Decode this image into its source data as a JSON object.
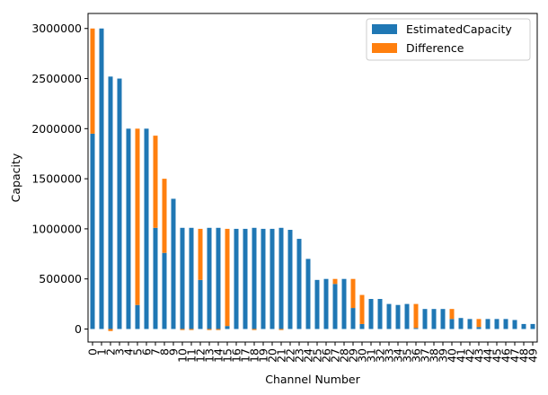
{
  "chart_data": {
    "type": "bar",
    "stacked": true,
    "xlabel": "Channel Number",
    "ylabel": "Capacity",
    "ylim": [
      -130000,
      3150000
    ],
    "yticks": [
      0,
      500000,
      1000000,
      1500000,
      2000000,
      2500000,
      3000000
    ],
    "ytick_labels": [
      "0",
      "500000",
      "1000000",
      "1500000",
      "2000000",
      "2500000",
      "3000000"
    ],
    "legend_position": "top-right",
    "categories": [
      "0",
      "1",
      "2",
      "3",
      "4",
      "5",
      "6",
      "7",
      "8",
      "9",
      "10",
      "11",
      "12",
      "13",
      "14",
      "15",
      "16",
      "17",
      "18",
      "19",
      "20",
      "21",
      "22",
      "23",
      "24",
      "25",
      "26",
      "27",
      "28",
      "29",
      "30",
      "31",
      "32",
      "33",
      "34",
      "35",
      "36",
      "37",
      "38",
      "39",
      "40",
      "41",
      "42",
      "43",
      "44",
      "45",
      "46",
      "47",
      "48",
      "49"
    ],
    "series": [
      {
        "name": "EstimatedCapacity",
        "color": "#1f77b4",
        "values": [
          1950000,
          3000000,
          2520000,
          2500000,
          2000000,
          240000,
          2000000,
          1010000,
          760000,
          1300000,
          1010000,
          1010000,
          490000,
          1010000,
          1010000,
          30000,
          1000000,
          1000000,
          1010000,
          1000000,
          1000000,
          1010000,
          990000,
          900000,
          700000,
          490000,
          500000,
          450000,
          500000,
          210000,
          50000,
          300000,
          300000,
          250000,
          240000,
          250000,
          10000,
          200000,
          200000,
          200000,
          100000,
          110000,
          100000,
          20000,
          100000,
          100000,
          100000,
          90000,
          50000,
          50000
        ]
      },
      {
        "name": "Difference",
        "color": "#ff7f0e",
        "values": [
          1050000,
          0,
          -20000,
          0,
          0,
          1760000,
          0,
          920000,
          740000,
          0,
          -10000,
          -10000,
          510000,
          -10000,
          -10000,
          970000,
          0,
          0,
          -10000,
          0,
          0,
          -10000,
          0,
          0,
          0,
          0,
          0,
          50000,
          0,
          290000,
          290000,
          0,
          0,
          0,
          0,
          0,
          240000,
          0,
          0,
          0,
          100000,
          0,
          0,
          80000,
          0,
          0,
          0,
          0,
          0,
          0
        ]
      }
    ]
  }
}
